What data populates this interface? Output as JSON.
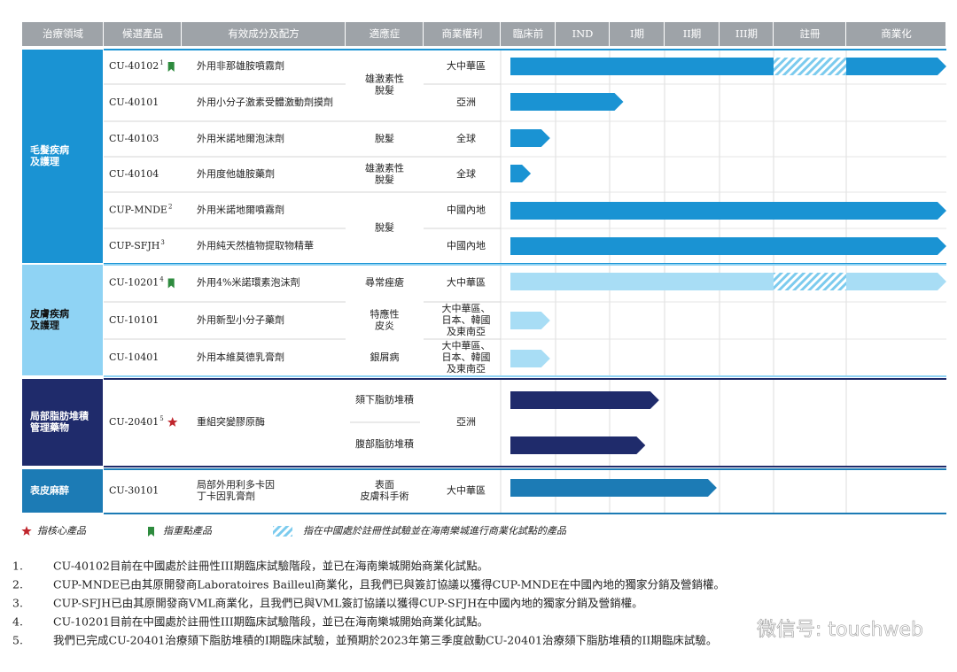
{
  "header": {
    "columns": [
      "治療領域",
      "候選產品",
      "有效成分及配方",
      "適應症",
      "商業權利",
      "臨床前",
      "IND",
      "I期",
      "II期",
      "III期",
      "註冊",
      "商業化"
    ]
  },
  "sections": [
    {
      "label": [
        "毛髮疾病",
        "及護理"
      ],
      "color": "#1a93d3",
      "bar_color": "#1a93d3",
      "text_color": "#ffffff",
      "rows": [
        {
          "product": "CU-40102",
          "note": "1",
          "marker": "key",
          "ingredient": [
            "外用非那雄胺噴霧劑"
          ],
          "bars": [
            {
              "end": 7,
              "hatch": [
                5,
                6
              ]
            }
          ]
        },
        {
          "product": "CU-40101",
          "ingredient": [
            "外用小分子激素受體激動劑摸劑"
          ],
          "bars": [
            {
              "end": 2.25
            }
          ]
        },
        {
          "product": "CU-40103",
          "ingredient": [
            "外用米諾地爾泡沫劑"
          ],
          "bars": [
            {
              "end": 0.9
            }
          ]
        },
        {
          "product": "CU-40104",
          "ingredient": [
            "外用度他雄胺藥劑"
          ],
          "bars": [
            {
              "end": 0.55
            }
          ]
        },
        {
          "product": "CUP-MNDE",
          "note": "2",
          "ingredient": [
            "外用米諾地爾噴霧劑"
          ],
          "bars": [
            {
              "end": 7
            }
          ]
        },
        {
          "product": "CUP-SFJH",
          "note": "3",
          "ingredient": [
            "外用純天然植物提取物精華"
          ],
          "bars": [
            {
              "end": 7
            }
          ]
        }
      ]
    },
    {
      "label": [
        "皮膚疾病",
        "及護理"
      ],
      "color": "#8fd3f4",
      "bar_color": "#a8ddf5",
      "text_color": "#111111",
      "rows": [
        {
          "product": "CU-10201",
          "note": "4",
          "marker": "key",
          "ingredient": [
            "外用4%米諾環素泡沫劑"
          ],
          "bars": [
            {
              "end": 7,
              "hatch": [
                5,
                6
              ]
            }
          ]
        },
        {
          "product": "CU-10101",
          "ingredient": [
            "外用新型小分子藥劑"
          ],
          "bars": [
            {
              "end": 0.9
            }
          ]
        },
        {
          "product": "CU-10401",
          "ingredient": [
            "外用本維莫德乳膏劑"
          ],
          "bars": [
            {
              "end": 0.9
            }
          ]
        }
      ]
    },
    {
      "label": [
        "局部脂肪堆積",
        "管理藥物"
      ],
      "color": "#1f2b6b",
      "bar_color": "#1f2b6b",
      "text_color": "#ffffff",
      "rows": [
        {
          "product": "CU-20401",
          "note": "5",
          "marker": "core",
          "ingredient": [
            "重組突變膠原酶"
          ],
          "bars": [
            {
              "end": 2.9
            },
            {
              "end": 2.65
            }
          ]
        }
      ]
    },
    {
      "label": [
        "表皮麻醉"
      ],
      "color": "#1c7bb5",
      "bar_color": "#1c7bb5",
      "text_color": "#ffffff",
      "rows": [
        {
          "product": "CU-30101",
          "ingredient": [
            "局部外用利多卡因",
            "丁卡因乳膏劑"
          ],
          "bars": [
            {
              "end": 3.95
            }
          ]
        }
      ]
    }
  ],
  "indications": [
    [
      "雄激素性",
      "脫髮"
    ],
    [
      "脫髮"
    ],
    [
      "雄激素性",
      "脫髮"
    ],
    [
      "脫髮"
    ],
    [
      "尋常痤瘡"
    ],
    [
      "特應性",
      "皮炎"
    ],
    [
      "銀屑病"
    ],
    [
      "頦下脂肪堆積"
    ],
    [
      "腹部脂肪堆積"
    ],
    [
      "表面",
      "皮膚科手術"
    ]
  ],
  "rights": [
    [
      "大中華區"
    ],
    [
      "亞洲"
    ],
    [
      "全球"
    ],
    [
      "全球"
    ],
    [
      "中國內地"
    ],
    [
      "中國內地"
    ],
    [
      "大中華區"
    ],
    [
      "大中華區、",
      "日本、韓國",
      "及東南亞"
    ],
    [
      "大中華區、",
      "日本、韓國",
      "及東南亞"
    ],
    [
      "亞洲"
    ],
    [
      "大中華區"
    ]
  ],
  "legend": {
    "core": "指核心產品",
    "key": "指重點產品",
    "hatch": "指在中國處於註冊性試驗並在海南樂城進行商業化試點的產品"
  },
  "footnotes": [
    {
      "number": "1.",
      "text": "CU-40102目前在中國處於註冊性III期臨床試驗階段，並已在海南樂城開始商業化試點。"
    },
    {
      "number": "2.",
      "text": "CUP-MNDE已由其原開發商Laboratoires Bailleul商業化，且我們已與簽訂協議以獲得CUP-MNDE在中國內地的獨家分銷及營銷權。"
    },
    {
      "number": "3.",
      "text": "CUP-SFJH已由其原開發商VML商業化，且我們已與VML簽訂協議以獲得CUP-SFJH在中國內地的獨家分銷及營銷權。"
    },
    {
      "number": "4.",
      "text": "CU-10201目前在中國處於註冊性III期臨床試驗階段，並已在海南樂城開始商業化試點。"
    },
    {
      "number": "5.",
      "text": "我們已完成CU-20401治療頦下脂肪堆積的I期臨床試驗，並預期於2023年第三季度啟動CU-20401治療頦下脂肪堆積的II期臨床試驗。"
    }
  ],
  "watermark": "微信号: touchweb"
}
